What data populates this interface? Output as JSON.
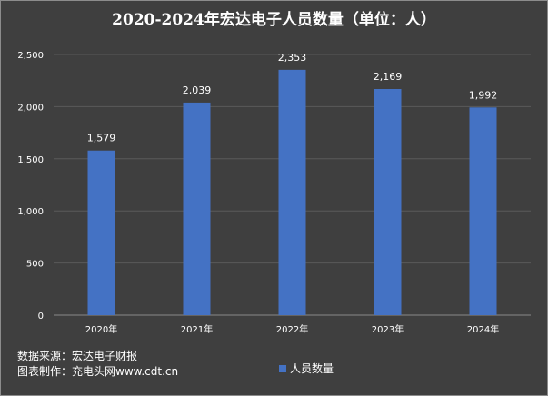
{
  "chart_data": {
    "type": "bar",
    "title": "2020-2024年宏达电子人员数量（单位：人）",
    "categories": [
      "2020年",
      "2021年",
      "2022年",
      "2023年",
      "2024年"
    ],
    "series": [
      {
        "name": "人员数量",
        "values": [
          1579,
          2039,
          2353,
          2169,
          1992
        ]
      }
    ],
    "data_labels": [
      "1,579",
      "2,039",
      "2,353",
      "2,169",
      "1,992"
    ],
    "y_ticks": [
      0,
      500,
      1000,
      1500,
      2000,
      2500
    ],
    "y_tick_labels": [
      "0",
      "500",
      "1,000",
      "1,500",
      "2,000",
      "2,500"
    ],
    "ylim": [
      0,
      2500
    ],
    "grid": true,
    "legend_position": "bottom",
    "colors": {
      "bar": "#4472c4",
      "background": "#3f3f3f",
      "grid": "#5a5a5a"
    }
  },
  "source": {
    "line1": "数据来源：宏达电子财报",
    "line2": "图表制作：充电头网www.cdt.cn"
  }
}
